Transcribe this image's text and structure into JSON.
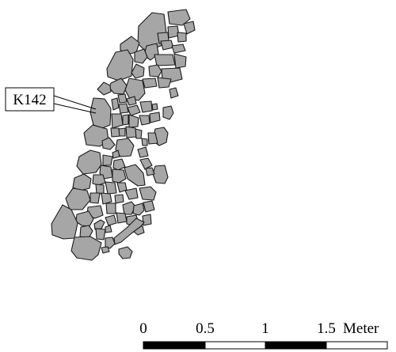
{
  "feature": {
    "label": "K142"
  },
  "scale_bar": {
    "tick_labels": [
      "0",
      "0.5",
      "1",
      "1.5"
    ],
    "unit": "Meter",
    "segment_fills": [
      "#000000",
      "#ffffff",
      "#000000",
      "#ffffff"
    ]
  },
  "colors": {
    "stone_fill": "#a6a6a6",
    "stone_outline": "#1a1a1a",
    "background": "#ffffff"
  }
}
